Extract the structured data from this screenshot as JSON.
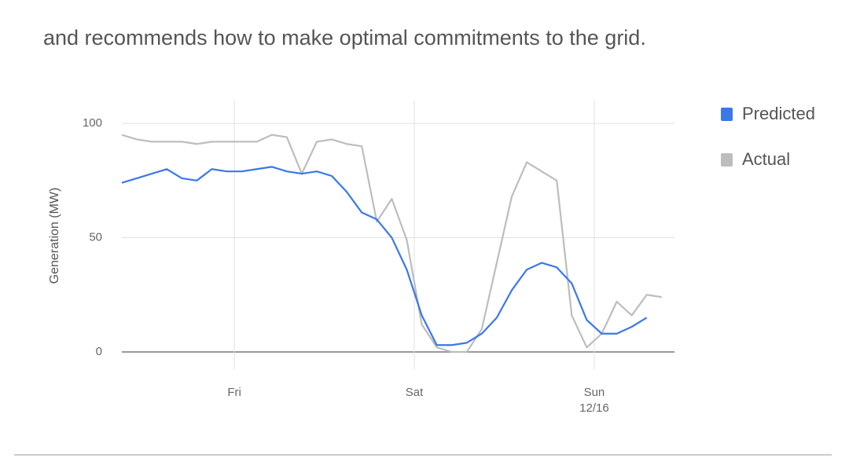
{
  "header": {
    "text": "and recommends how to make optimal commitments to the grid."
  },
  "chart_data": {
    "type": "line",
    "ylabel": "Generation (MW)",
    "x": [
      -15,
      -13,
      -11,
      -9,
      -7,
      -5,
      -3,
      -1,
      1,
      3,
      5,
      7,
      9,
      11,
      13,
      15,
      17,
      19,
      21,
      23,
      25,
      27,
      29,
      31,
      33,
      35,
      37,
      39,
      41,
      43,
      45,
      47,
      49,
      51,
      53,
      55,
      57
    ],
    "series": [
      {
        "name": "Predicted",
        "color": "#3b78e7",
        "values": [
          74,
          76,
          78,
          80,
          76,
          75,
          80,
          79,
          79,
          80,
          81,
          79,
          78,
          79,
          77,
          70,
          61,
          58,
          50,
          36,
          16,
          3,
          3,
          4,
          8,
          15,
          27,
          36,
          39,
          37,
          30,
          14,
          8,
          8,
          11,
          15,
          null
        ]
      },
      {
        "name": "Actual",
        "color": "#bdbdbd",
        "values": [
          95,
          93,
          92,
          92,
          92,
          91,
          92,
          92,
          92,
          92,
          95,
          94,
          78,
          92,
          93,
          91,
          90,
          57,
          67,
          49,
          12,
          2,
          0,
          0,
          10,
          39,
          68,
          83,
          79,
          75,
          16,
          2,
          8,
          22,
          16,
          25,
          24
        ]
      }
    ],
    "xlim": [
      -15,
      58.7
    ],
    "xticks": [
      {
        "value": 0,
        "label": "Fri"
      },
      {
        "value": 24,
        "label": "Sat"
      },
      {
        "value": 48,
        "label": "Sun\n12/16"
      }
    ],
    "ylim": [
      0,
      110
    ],
    "yticks": [
      0,
      50,
      100
    ],
    "grid": true,
    "legend": "right"
  }
}
